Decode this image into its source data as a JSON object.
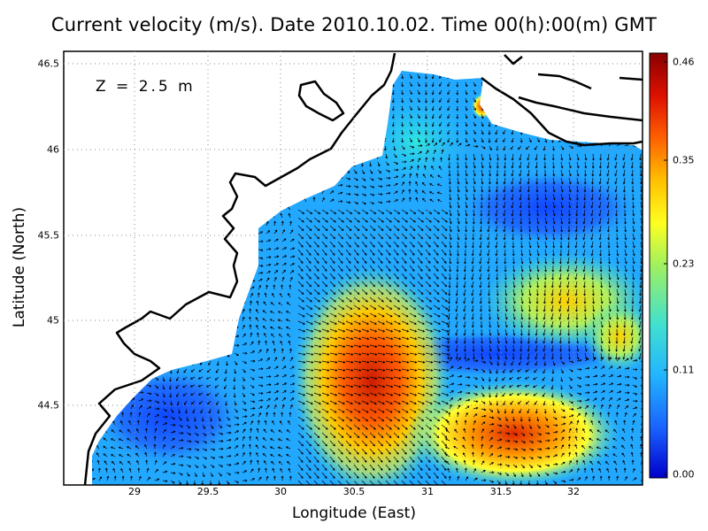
{
  "title": "Current velocity (m/s). Date 2010.10.02. Time 00(h):00(m) GMT",
  "depth_label": "Z = 2.5 m",
  "axes": {
    "xlabel": "Longitude (East)",
    "ylabel": "Latitude (North)",
    "x_ticks": [
      "29",
      "29.5",
      "30",
      "30.5",
      "31",
      "31.5",
      "32"
    ],
    "y_ticks": [
      "46.5",
      "46",
      "45.5",
      "45",
      "44.5"
    ],
    "xlim": [
      28.6,
      32.45
    ],
    "ylim": [
      44.05,
      46.55
    ]
  },
  "colorbar": {
    "ticks": [
      "0.46",
      "0.35",
      "0.23",
      "0.11",
      "0.00"
    ],
    "min": 0,
    "max": 0.46,
    "colors": [
      "#0000cc",
      "#1a64ff",
      "#22b4ff",
      "#40e0d0",
      "#a0f060",
      "#ffff20",
      "#ffc000",
      "#ff6000",
      "#dd1000",
      "#880000"
    ]
  },
  "colors": {
    "land_outline": "#000000",
    "arrows": "#000000",
    "grid": "#888888"
  }
}
